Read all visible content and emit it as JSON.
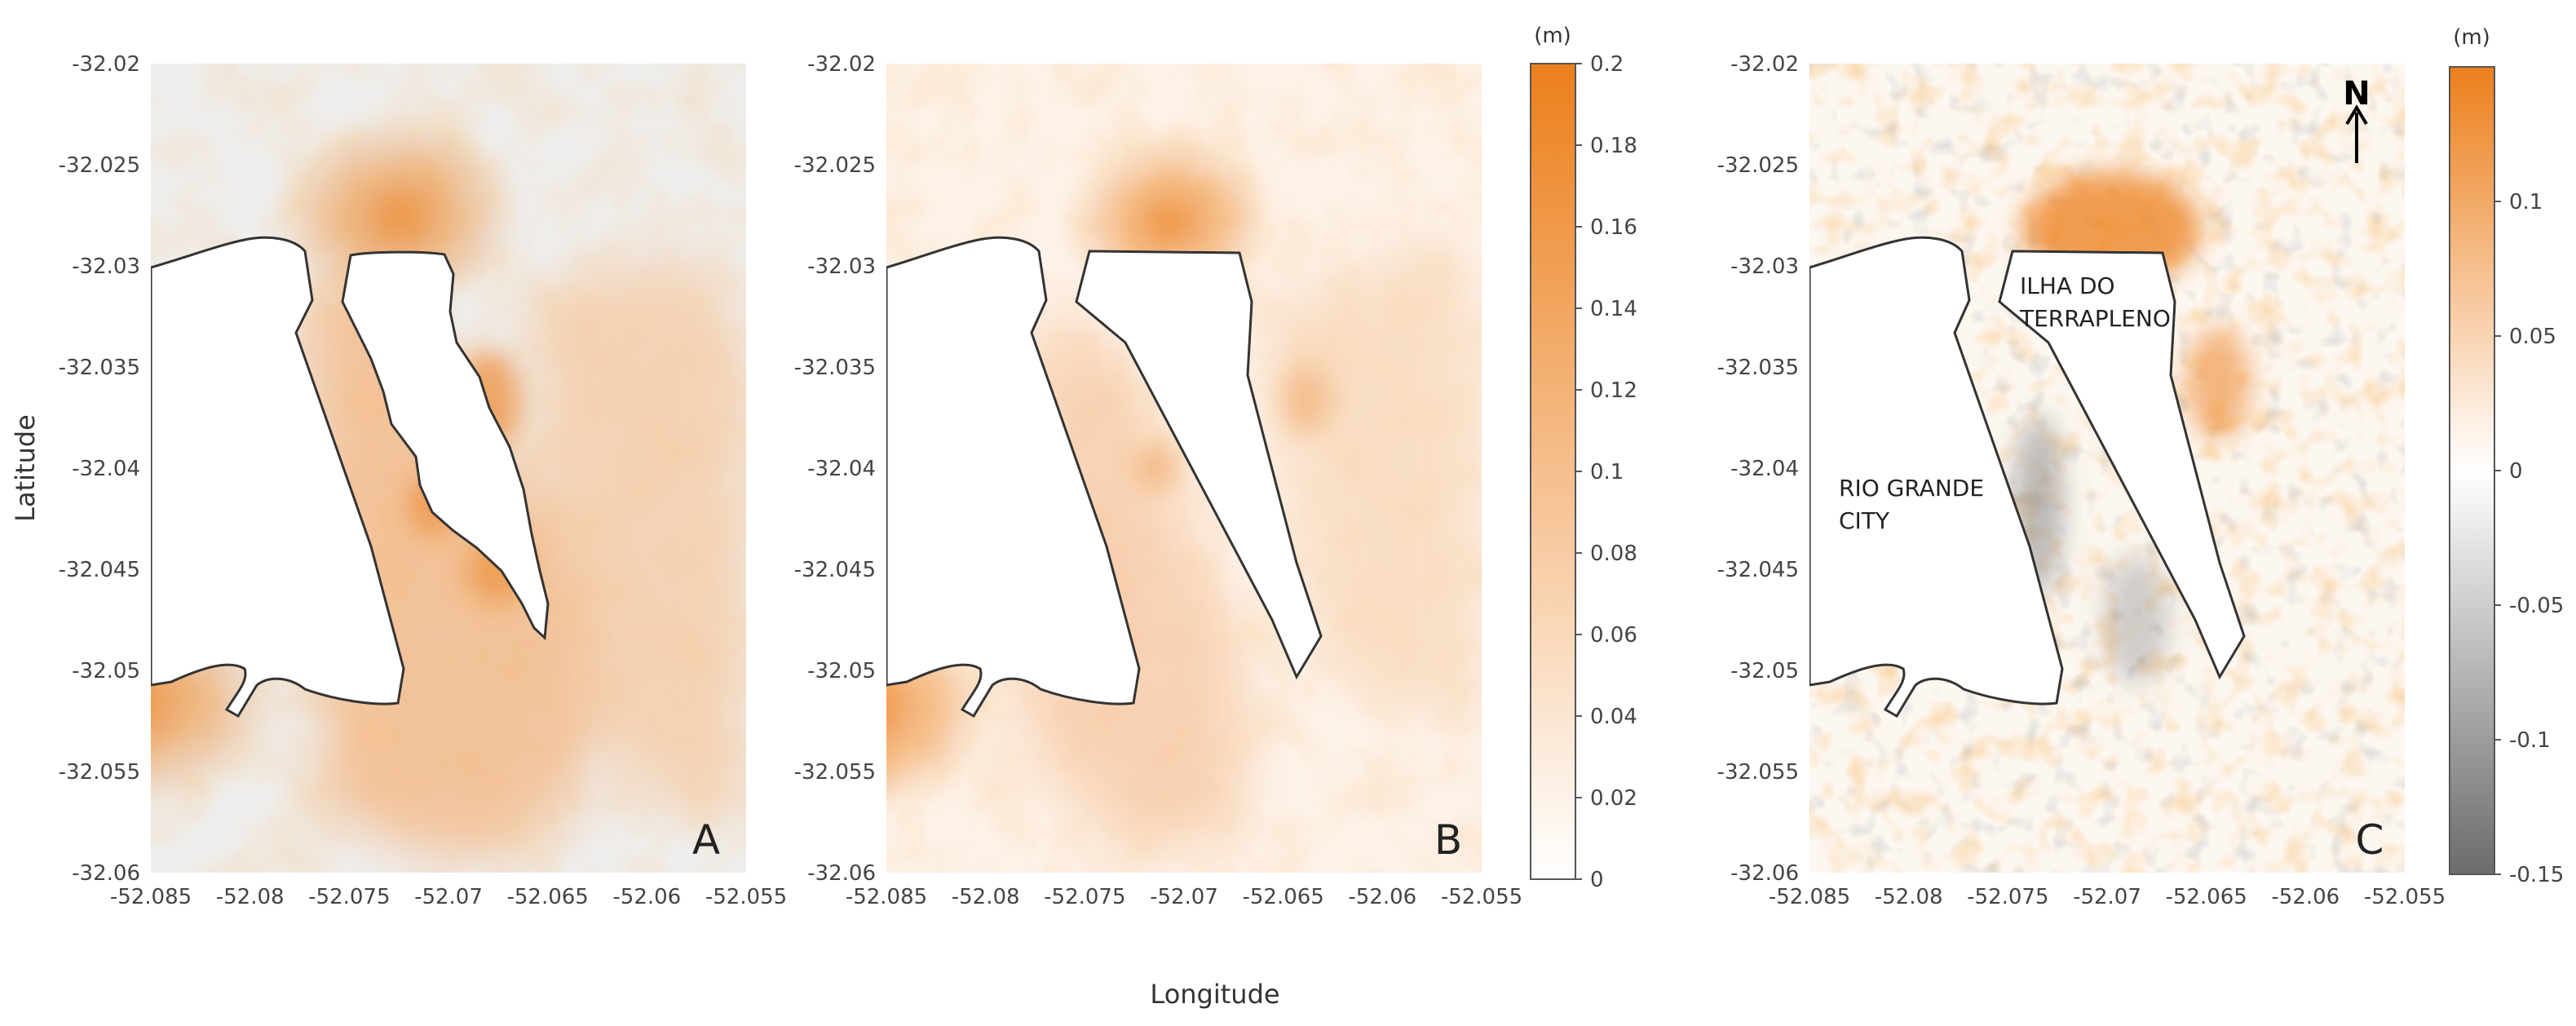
{
  "figure": {
    "xlabel": "Longitude",
    "ylabel": "Latitude",
    "lon_ticks": [
      "-52.085",
      "-52.08",
      "-52.075",
      "-52.07",
      "-52.065",
      "-52.06",
      "-52.055"
    ],
    "lat_ticks": [
      "-32.02",
      "-32.025",
      "-32.03",
      "-32.035",
      "-32.04",
      "-32.045",
      "-32.05",
      "-32.055",
      "-32.06"
    ],
    "lon_range": [
      -52.085,
      -52.055
    ],
    "lat_range": [
      -32.02,
      -32.06
    ]
  },
  "panels": [
    {
      "id": "a",
      "letter": "A",
      "colorbar": null,
      "labels": []
    },
    {
      "id": "b",
      "letter": "B",
      "colorbar": {
        "unit": "(m)",
        "ticks": [
          "0.2",
          "0.18",
          "0.16",
          "0.14",
          "0.12",
          "0.1",
          "0.08",
          "0.06",
          "0.04",
          "0.02",
          "0"
        ],
        "range": [
          0,
          0.2
        ],
        "colors": [
          "#ffffff",
          "#ec7f1b"
        ]
      },
      "labels": []
    },
    {
      "id": "c",
      "letter": "C",
      "north": "N",
      "colorbar": {
        "unit": "(m)",
        "ticks": [
          "0.1",
          "0.05",
          "0",
          "-0.05",
          "-0.1",
          "-0.15"
        ],
        "range": [
          -0.15,
          0.15
        ],
        "colors": [
          "#6b6b6b",
          "#ffffff",
          "#ec7f1b"
        ]
      },
      "labels": [
        {
          "line1": "ILHA DO",
          "line2": "TERRAPLENO"
        },
        {
          "line1": "RIO GRANDE",
          "line2": "CITY"
        }
      ]
    }
  ],
  "colors": {
    "orange": "#ec7f1b",
    "light_orange": "#f7c9a0",
    "panel_a_background": "#efefef",
    "coastline": "#333333",
    "negative_gray": "#6b6b6b"
  }
}
